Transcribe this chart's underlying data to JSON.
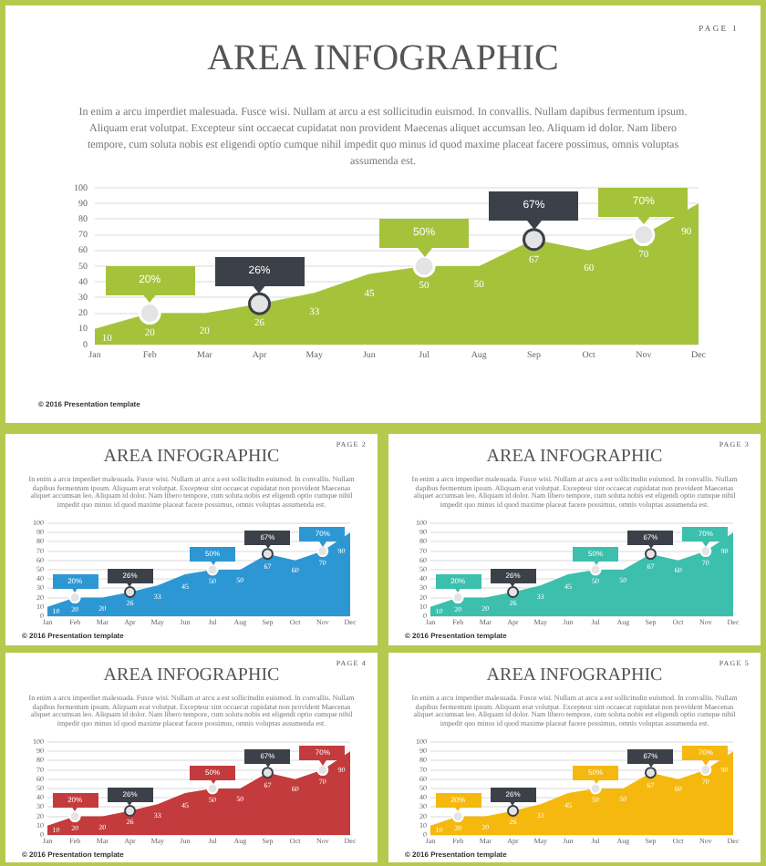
{
  "chart_data": [
    {
      "type": "area",
      "title": "AREA INFOGRAPHIC",
      "subtitle": "In enim a arcu imperdiet malesuada. Fusce wisi. Nullam at arcu a est sollicitudin euismod. In convallis. Nullam dapibus fermentum ipsum. Aliquam erat volutpat. Excepteur sint occaecat cupidatat non provident Maecenas aliquet accumsan leo. Aliquam id dolor. Nam libero tempore, cum soluta nobis est eligendi optio cumque nihil impedit quo minus id quod maxime placeat facere possimus, omnis voluptas assumenda est.",
      "categories": [
        "Jan",
        "Feb",
        "Mar",
        "Apr",
        "May",
        "Jun",
        "Jul",
        "Aug",
        "Sep",
        "Oct",
        "Nov",
        "Dec"
      ],
      "values": [
        10,
        20,
        20,
        26,
        33,
        45,
        50,
        50,
        67,
        60,
        70,
        90
      ],
      "color": "#a5c23b",
      "ylim": [
        0,
        100
      ],
      "yticks": [
        0,
        10,
        20,
        30,
        40,
        50,
        60,
        70,
        80,
        90,
        100
      ],
      "grid": "y",
      "data_labels": true,
      "annotations": [
        "PAGE 1",
        {
          "text": "20%",
          "x": "Feb",
          "y": 20
        },
        {
          "text": "26%",
          "x": "Apr",
          "y": 26
        },
        {
          "text": "50%",
          "x": "Jul",
          "y": 50
        },
        {
          "text": "67%",
          "x": "Sep",
          "y": 67
        },
        {
          "text": "70%",
          "x": "Nov",
          "y": 70
        },
        "© 2016 Presentation template"
      ]
    },
    {
      "type": "area",
      "title": "AREA INFOGRAPHIC",
      "subtitle": "In enim a arcu imperdiet malesuada. Fusce wisi. Nullam at arcu a est sollicitudin euismod. In convallis. Nullam dapibus fermentum ipsum. Aliquam erat volutpat. Excepteur sint occaecat cupidatat non provident Maecenas aliquet accumsan leo. Aliquam id dolor. Nam libero tempore, cum soluta nobis est eligendi optio cumque nihil impedit quo minus id quod maxime placeat facere possimus, omnis voluptas assumenda est.",
      "categories": [
        "Jan",
        "Feb",
        "Mar",
        "Apr",
        "May",
        "Jun",
        "Jul",
        "Aug",
        "Sep",
        "Oct",
        "Nov",
        "Dec"
      ],
      "values": [
        10,
        20,
        20,
        26,
        33,
        45,
        50,
        50,
        67,
        60,
        70,
        90
      ],
      "color": "#2d97d4",
      "ylim": [
        0,
        100
      ],
      "yticks": [
        0,
        10,
        20,
        30,
        40,
        50,
        60,
        70,
        80,
        90,
        100
      ],
      "grid": "y",
      "data_labels": true,
      "annotations": [
        "PAGE 2",
        {
          "text": "20%",
          "x": "Feb",
          "y": 20
        },
        {
          "text": "26%",
          "x": "Apr",
          "y": 26
        },
        {
          "text": "50%",
          "x": "Jul",
          "y": 50
        },
        {
          "text": "67%",
          "x": "Sep",
          "y": 67
        },
        {
          "text": "70%",
          "x": "Nov",
          "y": 70
        },
        "© 2016 Presentation template"
      ]
    },
    {
      "type": "area",
      "title": "AREA INFOGRAPHIC",
      "subtitle": "In enim a arcu imperdiet malesuada. Fusce wisi. Nullam at arcu a est sollicitudin euismod. In convallis. Nullam dapibus fermentum ipsum. Aliquam erat volutpat. Excepteur sint occaecat cupidatat non provident Maecenas aliquet accumsan leo. Aliquam id dolor. Nam libero tempore, cum soluta nobis est eligendi optio cumque nihil impedit quo minus id quod maxime placeat facere possimus, omnis voluptas assumenda est.",
      "categories": [
        "Jan",
        "Feb",
        "Mar",
        "Apr",
        "May",
        "Jun",
        "Jul",
        "Aug",
        "Sep",
        "Oct",
        "Nov",
        "Dec"
      ],
      "values": [
        10,
        20,
        20,
        26,
        33,
        45,
        50,
        50,
        67,
        60,
        70,
        90
      ],
      "color": "#3dbfad",
      "ylim": [
        0,
        100
      ],
      "yticks": [
        0,
        10,
        20,
        30,
        40,
        50,
        60,
        70,
        80,
        90,
        100
      ],
      "grid": "y",
      "data_labels": true,
      "annotations": [
        "PAGE 3",
        {
          "text": "20%",
          "x": "Feb",
          "y": 20
        },
        {
          "text": "26%",
          "x": "Apr",
          "y": 26
        },
        {
          "text": "50%",
          "x": "Jul",
          "y": 50
        },
        {
          "text": "67%",
          "x": "Sep",
          "y": 67
        },
        {
          "text": "70%",
          "x": "Nov",
          "y": 70
        },
        "© 2016 Presentation template"
      ]
    },
    {
      "type": "area",
      "title": "AREA INFOGRAPHIC",
      "subtitle": "In enim a arcu imperdiet malesuada. Fusce wisi. Nullam at arcu a est sollicitudin euismod. In convallis. Nullam dapibus fermentum ipsum. Aliquam erat volutpat. Excepteur sint occaecat cupidatat non provident Maecenas aliquet accumsan leo. Aliquam id dolor. Nam libero tempore, cum soluta nobis est eligendi optio cumque nihil impedit quo minus id quod maxime placeat facere possimus, omnis voluptas assumenda est.",
      "categories": [
        "Jan",
        "Feb",
        "Mar",
        "Apr",
        "May",
        "Jun",
        "Jul",
        "Aug",
        "Sep",
        "Oct",
        "Nov",
        "Dec"
      ],
      "values": [
        10,
        20,
        20,
        26,
        33,
        45,
        50,
        50,
        67,
        60,
        70,
        90
      ],
      "color": "#c33b3c",
      "ylim": [
        0,
        100
      ],
      "yticks": [
        0,
        10,
        20,
        30,
        40,
        50,
        60,
        70,
        80,
        90,
        100
      ],
      "grid": "y",
      "data_labels": true,
      "annotations": [
        "PAGE 4",
        {
          "text": "20%",
          "x": "Feb",
          "y": 20
        },
        {
          "text": "26%",
          "x": "Apr",
          "y": 26
        },
        {
          "text": "50%",
          "x": "Jul",
          "y": 50
        },
        {
          "text": "67%",
          "x": "Sep",
          "y": 67
        },
        {
          "text": "70%",
          "x": "Nov",
          "y": 70
        },
        "© 2016 Presentation template"
      ]
    },
    {
      "type": "area",
      "title": "AREA INFOGRAPHIC",
      "subtitle": "In enim a arcu imperdiet malesuada. Fusce wisi. Nullam at arcu a est sollicitudin euismod. In convallis. Nullam dapibus fermentum ipsum. Aliquam erat volutpat. Excepteur sint occaecat cupidatat non provident Maecenas aliquet accumsan leo. Aliquam id dolor. Nam libero tempore, cum soluta nobis est eligendi optio cumque nihil impedit quo minus id quod maxime placeat facere possimus, omnis voluptas assumenda est.",
      "categories": [
        "Jan",
        "Feb",
        "Mar",
        "Apr",
        "May",
        "Jun",
        "Jul",
        "Aug",
        "Sep",
        "Oct",
        "Nov",
        "Dec"
      ],
      "values": [
        10,
        20,
        20,
        26,
        33,
        45,
        50,
        50,
        67,
        60,
        70,
        90
      ],
      "color": "#f5b80f",
      "ylim": [
        0,
        100
      ],
      "yticks": [
        0,
        10,
        20,
        30,
        40,
        50,
        60,
        70,
        80,
        90,
        100
      ],
      "grid": "y",
      "data_labels": true,
      "annotations": [
        "PAGE 5",
        {
          "text": "20%",
          "x": "Feb",
          "y": 20
        },
        {
          "text": "26%",
          "x": "Apr",
          "y": 26
        },
        {
          "text": "50%",
          "x": "Jul",
          "y": 50
        },
        {
          "text": "67%",
          "x": "Sep",
          "y": 67
        },
        {
          "text": "70%",
          "x": "Nov",
          "y": 70
        },
        "© 2016 Presentation template"
      ]
    }
  ]
}
